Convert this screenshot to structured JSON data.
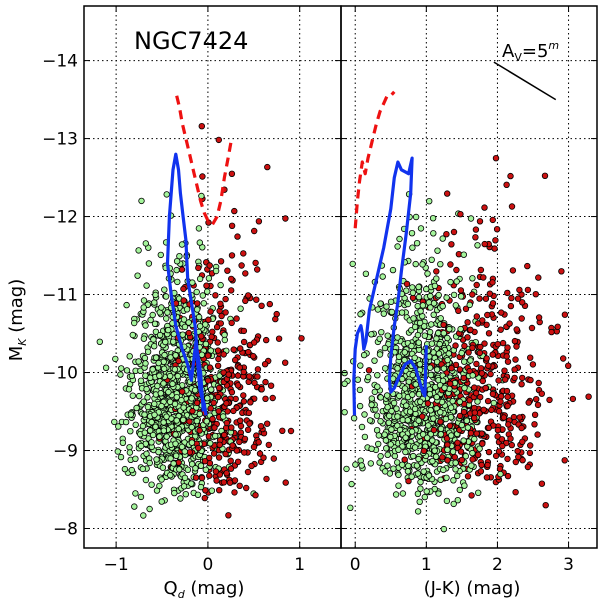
{
  "chart_data": [
    {
      "type": "scatter",
      "panel": "left",
      "title": "NGC7424",
      "xlabel": "Q",
      "xlabel_sub": "d",
      "xlabel_unit": " (mag)",
      "ylabel": "M",
      "ylabel_sub": "K",
      "ylabel_unit": " (mag)",
      "xlim": [
        -1.35,
        1.45
      ],
      "ylim": [
        -7.75,
        -14.7
      ],
      "y_inverted": true,
      "xticks": [
        -1,
        0,
        1
      ],
      "xtick_labels": [
        "−1",
        "0",
        "1"
      ],
      "yticks": [
        -8,
        -9,
        -10,
        -11,
        -12,
        -13,
        -14
      ],
      "ytick_labels": [
        "−8",
        "−9",
        "−10",
        "−11",
        "−12",
        "−13",
        "−14"
      ],
      "grid": true,
      "point_colors": {
        "green": "#a4f49b",
        "red": "#cc1111"
      },
      "point_edge": "#000000",
      "series": [
        {
          "kind": "line",
          "style": "solid",
          "color": "#1133ee",
          "x": [
            -0.05,
            -0.08,
            -0.12,
            -0.14,
            -0.18,
            -0.22,
            -0.24,
            -0.27,
            -0.3,
            -0.32,
            -0.35,
            -0.38,
            -0.42,
            -0.44,
            -0.4,
            -0.35,
            -0.28,
            -0.22,
            -0.18,
            -0.15,
            -0.13,
            -0.11,
            -0.09,
            -0.07,
            -0.04,
            -0.02
          ],
          "y": [
            -9.5,
            -10.0,
            -10.3,
            -10.6,
            -10.9,
            -11.2,
            -11.7,
            -12.0,
            -12.3,
            -12.6,
            -12.8,
            -12.6,
            -12.0,
            -11.4,
            -11.0,
            -10.6,
            -10.3,
            -10.1,
            -9.9,
            -10.2,
            -10.4,
            -10.1,
            -9.8,
            -9.7,
            -9.6,
            -9.45
          ]
        },
        {
          "kind": "line",
          "style": "dashed",
          "color": "#ee1111",
          "x": [
            -0.34,
            -0.31,
            -0.28,
            -0.24,
            -0.2,
            -0.16,
            -0.12,
            -0.08,
            -0.04,
            0.0,
            0.05,
            0.1,
            0.14,
            0.18,
            0.22,
            0.25
          ],
          "y": [
            -13.55,
            -13.4,
            -13.2,
            -13.0,
            -12.8,
            -12.6,
            -12.4,
            -12.2,
            -12.05,
            -11.95,
            -11.9,
            -12.0,
            -12.2,
            -12.5,
            -12.75,
            -12.95
          ]
        }
      ]
    },
    {
      "type": "scatter",
      "panel": "right",
      "xlabel": "(J-K) (mag)",
      "xlim": [
        -0.2,
        3.4
      ],
      "ylim": [
        -7.75,
        -14.7
      ],
      "y_inverted": true,
      "xticks": [
        0,
        1,
        2,
        3
      ],
      "xtick_labels": [
        "0",
        "1",
        "2",
        "3"
      ],
      "yticks": [
        -8,
        -9,
        -10,
        -11,
        -12,
        -13,
        -14
      ],
      "grid": true,
      "annotation": {
        "text": "A",
        "sub": "V",
        "rest": "=5",
        "sup": "m"
      },
      "reddening_vector": {
        "x": [
          1.95,
          2.82
        ],
        "y": [
          -13.98,
          -13.5
        ]
      },
      "series": [
        {
          "kind": "line",
          "style": "solid",
          "color": "#1133ee",
          "x": [
            -0.01,
            -0.02,
            0.0,
            0.03,
            0.08,
            0.1,
            0.12,
            0.15,
            0.2,
            0.3,
            0.4,
            0.5,
            0.55,
            0.6,
            0.65,
            0.75,
            0.8,
            0.78,
            0.72,
            0.65,
            0.6,
            0.55,
            0.5,
            0.48,
            0.5,
            0.55,
            0.62,
            0.7,
            0.78,
            0.85,
            0.9,
            0.95,
            0.98,
            1.0
          ],
          "y": [
            -9.45,
            -9.9,
            -10.3,
            -10.5,
            -10.6,
            -10.5,
            -10.3,
            -10.4,
            -10.8,
            -11.2,
            -11.6,
            -12.1,
            -12.5,
            -12.7,
            -12.6,
            -12.55,
            -12.75,
            -12.3,
            -11.8,
            -11.3,
            -10.9,
            -10.6,
            -10.2,
            -9.9,
            -9.75,
            -9.8,
            -9.95,
            -10.1,
            -10.15,
            -10.05,
            -9.9,
            -9.75,
            -9.7,
            -10.35
          ]
        },
        {
          "kind": "line",
          "style": "dashed",
          "color": "#ee1111",
          "x": [
            0.0,
            0.03,
            0.06,
            0.1,
            0.14,
            0.18,
            0.22,
            0.26,
            0.3,
            0.35,
            0.4,
            0.45,
            0.5,
            0.55
          ],
          "y": [
            -11.85,
            -12.2,
            -12.45,
            -12.7,
            -12.55,
            -12.75,
            -12.9,
            -13.05,
            -13.2,
            -13.35,
            -13.45,
            -13.55,
            -13.55,
            -13.6
          ]
        }
      ]
    }
  ]
}
